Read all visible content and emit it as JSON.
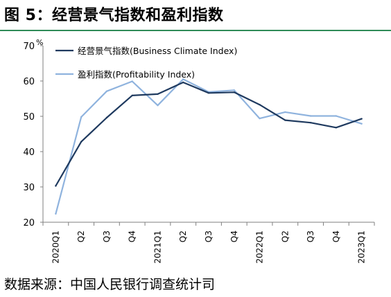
{
  "figure": {
    "title": "图 5：经营景气指数和盈利指数",
    "source": "数据来源：中国人民银行调查统计司"
  },
  "chart_data": {
    "type": "line",
    "categories": [
      "2020Q1",
      "Q2",
      "Q3",
      "Q4",
      "2021Q1",
      "Q2",
      "Q3",
      "Q4",
      "2022Q1",
      "Q2",
      "Q3",
      "Q4",
      "2023Q1"
    ],
    "ylabel": "%",
    "ylim": [
      20,
      70
    ],
    "yticks": [
      20,
      30,
      40,
      50,
      60,
      70
    ],
    "grid": false,
    "legend_position": "top-left",
    "series": [
      {
        "name": "经营景气指数(Business Climate Index)",
        "color": "#1f3a5f",
        "values": [
          30.3,
          42.8,
          49.6,
          55.9,
          56.3,
          59.6,
          56.6,
          56.8,
          53.3,
          48.9,
          48.2,
          46.8,
          49.3
        ]
      },
      {
        "name": "盈利指数(Profitability Index)",
        "color": "#8fb3de",
        "values": [
          22.4,
          49.8,
          57.1,
          59.9,
          53.1,
          60.5,
          56.9,
          57.4,
          49.4,
          51.2,
          50.1,
          50.1,
          47.9
        ]
      }
    ]
  }
}
